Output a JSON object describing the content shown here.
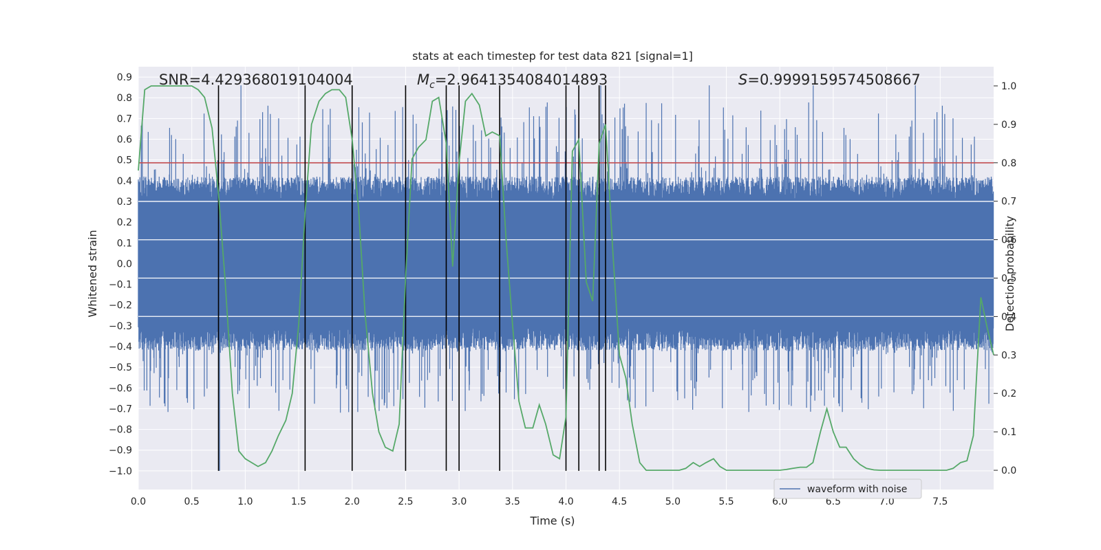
{
  "chart_data": {
    "type": "line",
    "title": "stats at each timestep for test data 821 [signal=1]",
    "xlabel": "Time (s)",
    "ylabel": "Whitened strain",
    "y2label": "Detection probability",
    "xlim": [
      0.0,
      8.0
    ],
    "ylim": [
      -1.09,
      0.95
    ],
    "y2lim": [
      -0.05,
      1.05
    ],
    "x_ticks": [
      0.0,
      0.5,
      1.0,
      1.5,
      2.0,
      2.5,
      3.0,
      3.5,
      4.0,
      4.5,
      5.0,
      5.5,
      6.0,
      6.5,
      7.0,
      7.5
    ],
    "x_tick_labels": [
      "0.0",
      "0.5",
      "1.0",
      "1.5",
      "2.0",
      "2.5",
      "3.0",
      "3.5",
      "4.0",
      "4.5",
      "5.0",
      "5.5",
      "6.0",
      "6.5",
      "7.0",
      "7.5"
    ],
    "y_ticks": [
      0.9,
      0.8,
      0.7,
      0.6,
      0.5,
      0.4,
      0.3,
      0.2,
      0.1,
      0.0,
      -0.1,
      -0.2,
      -0.3,
      -0.4,
      -0.5,
      -0.6,
      -0.7,
      -0.8,
      -0.9,
      -1.0
    ],
    "y_tick_labels": [
      "0.9",
      "0.8",
      "0.7",
      "0.6",
      "0.5",
      "0.4",
      "0.3",
      "0.2",
      "0.1",
      "0.0",
      "−0.1",
      "−0.2",
      "−0.3",
      "−0.4",
      "−0.5",
      "−0.6",
      "−0.7",
      "−0.8",
      "−0.9",
      "−1.0"
    ],
    "y2_ticks": [
      1.0,
      0.9,
      0.8,
      0.7,
      0.6,
      0.5,
      0.4,
      0.3,
      0.2,
      0.1,
      0.0
    ],
    "y2_tick_labels": [
      "1.0",
      "0.9",
      "0.8",
      "0.7",
      "0.6",
      "0.5",
      "0.4",
      "0.3",
      "0.2",
      "0.1",
      "0.0"
    ],
    "grid": true,
    "legend": {
      "entries": [
        "waveform with noise"
      ],
      "placement": "lower-right"
    },
    "annotations": {
      "snr": "SNR=4.429368019104004",
      "mc_symbol": "M",
      "mc_sub": "c",
      "mc_value": "=2.9641354084014893",
      "s_symbol": "S",
      "s_value": "=0.9999159574508667"
    },
    "threshold": {
      "value": 0.8,
      "axis": "right"
    },
    "vertical_lines_x": [
      0.75,
      1.56,
      2.0,
      2.5,
      2.88,
      3.0,
      3.38,
      4.0,
      4.12,
      4.31,
      4.37
    ],
    "vertical_lines_ylim": [
      -1.0,
      0.86
    ],
    "white_bands_y": [
      0.3,
      0.115,
      -0.07,
      -0.255
    ],
    "waveform": {
      "name": "waveform with noise",
      "description_envelope": {
        "core_low": -0.3,
        "core_high": 0.3,
        "spike_max": 0.86,
        "spike_min": -1.0
      }
    },
    "series": [
      {
        "name": "detection probability",
        "axis": "right",
        "x": [
          0.0,
          0.06,
          0.12,
          0.19,
          0.25,
          0.31,
          0.38,
          0.44,
          0.5,
          0.56,
          0.62,
          0.69,
          0.75,
          0.81,
          0.88,
          0.94,
          1.0,
          1.06,
          1.12,
          1.19,
          1.25,
          1.31,
          1.38,
          1.44,
          1.5,
          1.56,
          1.62,
          1.69,
          1.75,
          1.81,
          1.88,
          1.94,
          2.0,
          2.06,
          2.12,
          2.19,
          2.25,
          2.31,
          2.38,
          2.44,
          2.5,
          2.56,
          2.62,
          2.69,
          2.75,
          2.81,
          2.88,
          2.94,
          3.0,
          3.06,
          3.12,
          3.19,
          3.25,
          3.31,
          3.38,
          3.44,
          3.5,
          3.56,
          3.62,
          3.69,
          3.75,
          3.81,
          3.88,
          3.94,
          4.0,
          4.06,
          4.12,
          4.19,
          4.25,
          4.31,
          4.37,
          4.44,
          4.5,
          4.56,
          4.62,
          4.69,
          4.75,
          4.81,
          4.88,
          4.94,
          5.0,
          5.06,
          5.12,
          5.19,
          5.25,
          5.31,
          5.38,
          5.44,
          5.5,
          5.56,
          5.62,
          5.69,
          5.75,
          5.81,
          5.88,
          5.94,
          6.0,
          6.06,
          6.12,
          6.19,
          6.25,
          6.31,
          6.38,
          6.44,
          6.5,
          6.56,
          6.62,
          6.69,
          6.75,
          6.81,
          6.88,
          6.94,
          7.0,
          7.06,
          7.12,
          7.19,
          7.25,
          7.31,
          7.38,
          7.44,
          7.5,
          7.56,
          7.62,
          7.69,
          7.75,
          7.81,
          7.88,
          7.94,
          8.0
        ],
        "values": [
          0.78,
          0.99,
          1.0,
          1.0,
          1.0,
          1.0,
          1.0,
          1.0,
          1.0,
          0.99,
          0.97,
          0.89,
          0.72,
          0.5,
          0.2,
          0.05,
          0.03,
          0.02,
          0.01,
          0.02,
          0.05,
          0.09,
          0.13,
          0.2,
          0.38,
          0.67,
          0.9,
          0.96,
          0.98,
          0.99,
          0.99,
          0.97,
          0.86,
          0.68,
          0.41,
          0.2,
          0.1,
          0.06,
          0.05,
          0.12,
          0.5,
          0.81,
          0.84,
          0.86,
          0.96,
          0.97,
          0.85,
          0.53,
          0.8,
          0.96,
          0.98,
          0.95,
          0.87,
          0.88,
          0.87,
          0.6,
          0.38,
          0.18,
          0.11,
          0.11,
          0.17,
          0.12,
          0.04,
          0.03,
          0.14,
          0.83,
          0.86,
          0.49,
          0.44,
          0.85,
          0.9,
          0.56,
          0.3,
          0.24,
          0.12,
          0.02,
          0.0,
          0.0,
          0.0,
          0.0,
          0.0,
          0.0,
          0.005,
          0.02,
          0.01,
          0.02,
          0.03,
          0.01,
          0.0,
          0.0,
          0.0,
          0.0,
          0.0,
          0.0,
          0.0,
          0.0,
          0.0,
          0.002,
          0.005,
          0.008,
          0.008,
          0.02,
          0.1,
          0.16,
          0.1,
          0.06,
          0.06,
          0.03,
          0.015,
          0.005,
          0.001,
          0.0,
          0.0,
          0.0,
          0.0,
          0.0,
          0.0,
          0.0,
          0.0,
          0.0,
          0.0,
          0.0,
          0.005,
          0.02,
          0.025,
          0.09,
          0.45,
          0.37,
          0.3
        ],
        "color": "#55a868"
      }
    ],
    "colors": {
      "plot_bg": "#eaeaf2",
      "grid": "#ffffff",
      "waveform": "#4c72b0",
      "probability": "#55a868",
      "threshold": "#c44e52",
      "vlines": "#000000"
    }
  }
}
